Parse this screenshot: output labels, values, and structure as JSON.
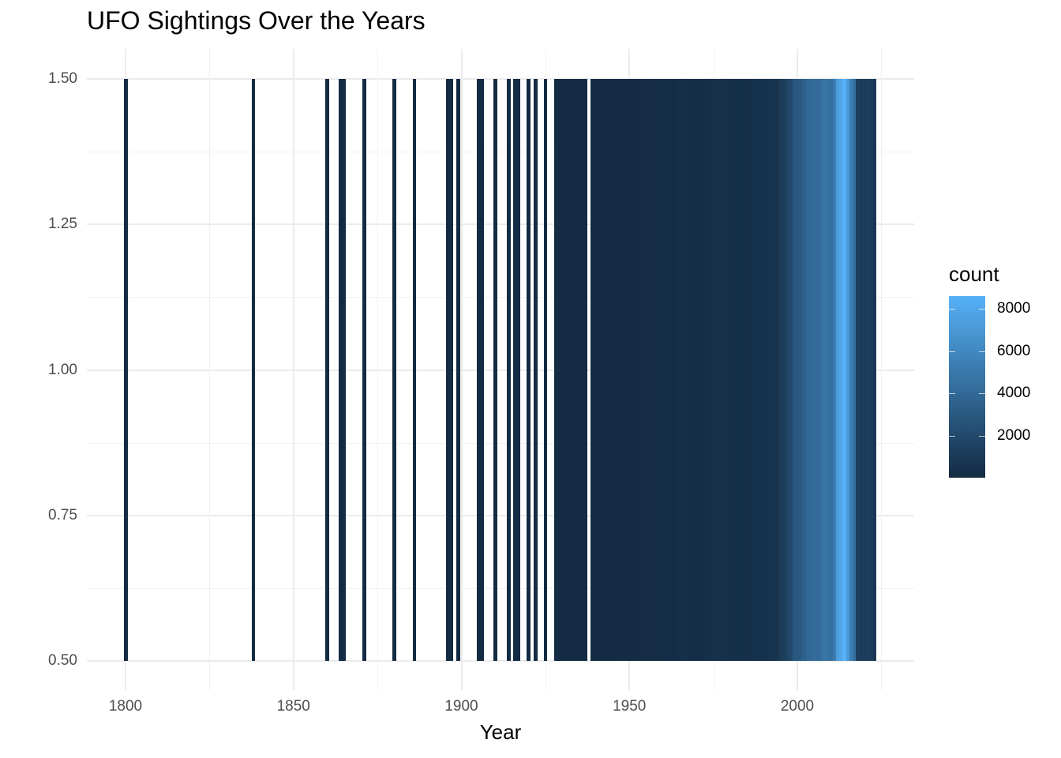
{
  "chart_data": {
    "type": "heatmap",
    "title": "UFO Sightings Over the Years",
    "xlabel": "Year",
    "ylabel": "",
    "xlim": [
      1795,
      2035
    ],
    "ylim": [
      0.5,
      1.5
    ],
    "x_ticks": [
      1800,
      1850,
      1900,
      1950,
      2000
    ],
    "y_ticks": [
      "0.50",
      "0.75",
      "1.00",
      "1.25",
      "1.50"
    ],
    "grid": true,
    "legend": {
      "title": "count",
      "position": "right",
      "type": "colorbar",
      "low_color": "#132b43",
      "high_color": "#56b1f7",
      "range": [
        1,
        8600
      ],
      "ticks": [
        "2000",
        "4000",
        "6000",
        "8000"
      ]
    },
    "series": [
      {
        "name": "count",
        "x": [
          1800,
          1838,
          1860,
          1864,
          1865,
          1871,
          1880,
          1886,
          1896,
          1897,
          1899,
          1905,
          1906,
          1910,
          1914,
          1916,
          1917,
          1920,
          1922,
          1925,
          1928,
          1929,
          1930,
          1931,
          1932,
          1933,
          1934,
          1935,
          1936,
          1937,
          1939,
          1940,
          1941,
          1942,
          1943,
          1944,
          1945,
          1946,
          1947,
          1948,
          1949,
          1950,
          1951,
          1952,
          1953,
          1954,
          1955,
          1956,
          1957,
          1958,
          1959,
          1960,
          1961,
          1962,
          1963,
          1964,
          1965,
          1966,
          1967,
          1968,
          1969,
          1970,
          1971,
          1972,
          1973,
          1974,
          1975,
          1976,
          1977,
          1978,
          1979,
          1980,
          1981,
          1982,
          1983,
          1984,
          1985,
          1986,
          1987,
          1988,
          1989,
          1990,
          1991,
          1992,
          1993,
          1994,
          1995,
          1996,
          1997,
          1998,
          1999,
          2000,
          2001,
          2002,
          2003,
          2004,
          2005,
          2006,
          2007,
          2008,
          2009,
          2010,
          2011,
          2012,
          2013,
          2014,
          2015,
          2016,
          2017,
          2018,
          2019,
          2020,
          2021,
          2022,
          2023
        ],
        "values": [
          1,
          1,
          1,
          1,
          1,
          1,
          1,
          1,
          1,
          1,
          1,
          1,
          1,
          1,
          1,
          1,
          1,
          1,
          1,
          1,
          2,
          2,
          3,
          2,
          3,
          2,
          3,
          2,
          4,
          5,
          8,
          10,
          8,
          12,
          10,
          14,
          20,
          40,
          90,
          60,
          50,
          60,
          60,
          90,
          80,
          100,
          80,
          110,
          120,
          100,
          120,
          150,
          130,
          140,
          160,
          200,
          250,
          300,
          300,
          280,
          200,
          220,
          220,
          240,
          300,
          320,
          350,
          380,
          360,
          380,
          330,
          350,
          300,
          310,
          320,
          300,
          340,
          330,
          380,
          400,
          370,
          380,
          400,
          420,
          450,
          500,
          1000,
          1200,
          1600,
          1900,
          2800,
          2900,
          3000,
          3400,
          3900,
          4000,
          4300,
          4000,
          4300,
          4800,
          4600,
          4400,
          5200,
          7400,
          7800,
          8600,
          7200,
          5400,
          4400,
          1200,
          1000,
          1100,
          1200,
          1000,
          800
        ]
      }
    ]
  }
}
